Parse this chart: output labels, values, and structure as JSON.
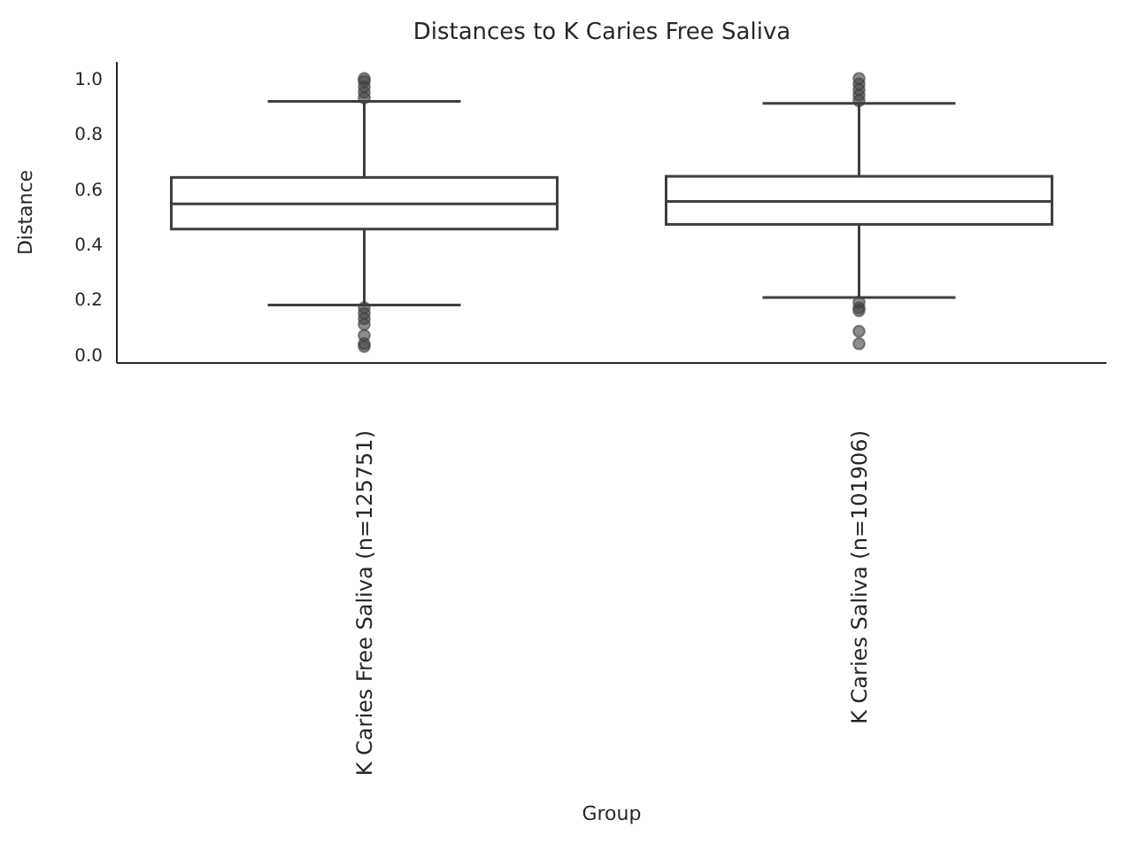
{
  "chart_data": {
    "type": "box",
    "title": "Distances to K Caries Free Saliva",
    "xlabel": "Group",
    "ylabel": "Distance",
    "categories": [
      "K Caries Free Saliva (n=125751)",
      "K Caries Saliva (n=101906)"
    ],
    "boxes": [
      {
        "low": 0.18,
        "q1": 0.455,
        "median": 0.546,
        "q3": 0.642,
        "high": 0.917,
        "outliers": [
          0.93,
          0.95,
          0.97,
          0.99,
          1.0,
          0.17,
          0.15,
          0.13,
          0.11,
          0.07,
          0.04,
          0.03
        ]
      },
      {
        "low": 0.207,
        "q1": 0.472,
        "median": 0.555,
        "q3": 0.646,
        "high": 0.91,
        "outliers": [
          0.92,
          0.94,
          0.96,
          0.98,
          1.0,
          0.19,
          0.17,
          0.16,
          0.085,
          0.04
        ]
      }
    ],
    "color": "#3f3f3f",
    "ylim": [
      -0.03,
      1.06
    ],
    "yticks": [
      {
        "value": 0,
        "label": "0.0"
      },
      {
        "value": 0.2,
        "label": "0.2"
      },
      {
        "value": 0.4,
        "label": "0.4"
      },
      {
        "value": 0.6,
        "label": "0.6"
      },
      {
        "value": 0.8,
        "label": "0.8"
      },
      {
        "value": 1,
        "label": "1.0"
      }
    ],
    "grid": false,
    "legend": false
  }
}
